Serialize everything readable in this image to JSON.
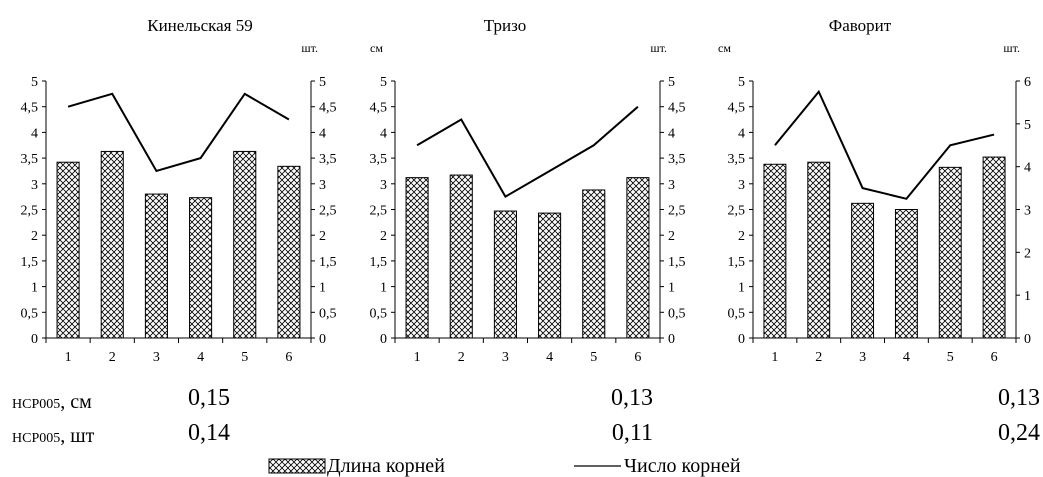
{
  "chart_data": [
    {
      "type": "bar",
      "title": "Кинельская 59",
      "left_unit": "",
      "right_unit": "шт.",
      "categories": [
        "1",
        "2",
        "3",
        "4",
        "5",
        "6"
      ],
      "left_ylim": [
        0,
        5
      ],
      "left_ticks": [
        "0",
        "0,5",
        "1",
        "1,5",
        "2",
        "2,5",
        "3",
        "3,5",
        "4",
        "4,5",
        "5"
      ],
      "right_ylim": [
        0,
        5
      ],
      "right_ticks": [
        "0",
        "0,5",
        "1",
        "1,5",
        "2",
        "2,5",
        "3",
        "3,5",
        "4",
        "4,5",
        "5"
      ],
      "series": [
        {
          "name": "Длина корней",
          "kind": "bar",
          "values": [
            3.42,
            3.63,
            2.8,
            2.73,
            3.63,
            3.34
          ]
        },
        {
          "name": "Число корней",
          "kind": "line",
          "values": [
            4.5,
            4.75,
            3.25,
            3.5,
            4.75,
            4.25
          ]
        }
      ]
    },
    {
      "type": "bar",
      "title": "Тризо",
      "left_unit": "см",
      "right_unit": "шт.",
      "categories": [
        "1",
        "2",
        "3",
        "4",
        "5",
        "6"
      ],
      "left_ylim": [
        0,
        5
      ],
      "left_ticks": [
        "0",
        "0,5",
        "1",
        "1,5",
        "2",
        "2,5",
        "3",
        "3,5",
        "4",
        "4,5",
        "5"
      ],
      "right_ylim": [
        0,
        5
      ],
      "right_ticks": [
        "0",
        "0,5",
        "1",
        "1,5",
        "2",
        "2,5",
        "3",
        "3,5",
        "4",
        "4,5",
        "5"
      ],
      "series": [
        {
          "name": "Длина корней",
          "kind": "bar",
          "values": [
            3.12,
            3.17,
            2.47,
            2.43,
            2.88,
            3.12
          ]
        },
        {
          "name": "Число корней",
          "kind": "line",
          "values": [
            3.75,
            4.25,
            2.75,
            3.25,
            3.75,
            4.5
          ]
        }
      ]
    },
    {
      "type": "bar",
      "title": "Фаворит",
      "left_unit": "см",
      "right_unit": "шт.",
      "categories": [
        "1",
        "2",
        "3",
        "4",
        "5",
        "6"
      ],
      "left_ylim": [
        0,
        5
      ],
      "left_ticks": [
        "0",
        "0,5",
        "1",
        "1,5",
        "2",
        "2,5",
        "3",
        "3,5",
        "4",
        "4,5",
        "5"
      ],
      "right_ylim": [
        0,
        6
      ],
      "right_ticks": [
        "0",
        "1",
        "2",
        "3",
        "4",
        "5",
        "6"
      ],
      "series": [
        {
          "name": "Длина корней",
          "kind": "bar",
          "values": [
            3.38,
            3.42,
            2.62,
            2.5,
            3.32,
            3.52
          ]
        },
        {
          "name": "Число корней",
          "kind": "line",
          "values": [
            4.5,
            5.75,
            3.5,
            3.25,
            4.5,
            4.75
          ]
        }
      ]
    }
  ],
  "hcp": {
    "label_sm_prefix": "НСР005",
    "label_sm_suffix": ", см",
    "label_sht_prefix": "НСР005",
    "label_sht_suffix": ", шт",
    "values_sm": [
      "0,15",
      "0,13",
      "0,13"
    ],
    "values_sht": [
      "0,14",
      "0,11",
      "0,24"
    ]
  },
  "legend": {
    "bar_label": "Длина корней",
    "line_label": "Число корней"
  }
}
